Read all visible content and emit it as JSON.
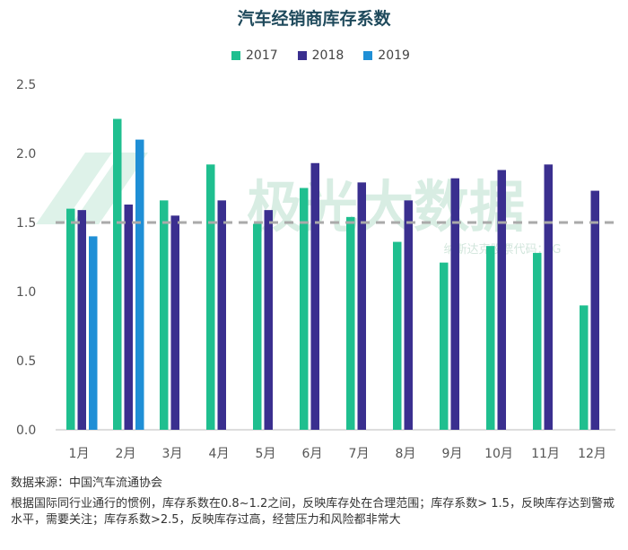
{
  "chart_data": {
    "type": "bar",
    "title": "汽车经销商库存系数",
    "categories": [
      "1月",
      "2月",
      "3月",
      "4月",
      "5月",
      "6月",
      "7月",
      "8月",
      "9月",
      "10月",
      "11月",
      "12月"
    ],
    "series": [
      {
        "name": "2017",
        "color": "#1fbf8f",
        "values": [
          1.6,
          2.25,
          1.66,
          1.92,
          1.49,
          1.75,
          1.54,
          1.36,
          1.21,
          1.33,
          1.28,
          0.9
        ]
      },
      {
        "name": "2018",
        "color": "#3a2f8f",
        "values": [
          1.59,
          1.63,
          1.55,
          1.66,
          1.59,
          1.93,
          1.79,
          1.66,
          1.82,
          1.88,
          1.92,
          1.73
        ]
      },
      {
        "name": "2019",
        "color": "#1f8fd6",
        "values": [
          1.4,
          2.1,
          null,
          null,
          null,
          null,
          null,
          null,
          null,
          null,
          null,
          null
        ]
      }
    ],
    "ylim": [
      0,
      2.5
    ],
    "yticks": [
      "0.0",
      "0.5",
      "1.0",
      "1.5",
      "2.0",
      "2.5"
    ],
    "reference_line": 1.5,
    "legend_position": "top-center",
    "watermark": "极光大数据",
    "watermark_sub": "纳斯达克股票代码：JG"
  },
  "footer": {
    "source": "数据来源：中国汽车流通协会",
    "description": "根据国际同行业通行的惯例，库存系数在0.8~1.2之间，反映库存处在合理范围；库存系数> 1.5，反映库存达到警戒水平，需要关注；库存系数>2.5，反映库存过高，经营压力和风险都非常大"
  }
}
